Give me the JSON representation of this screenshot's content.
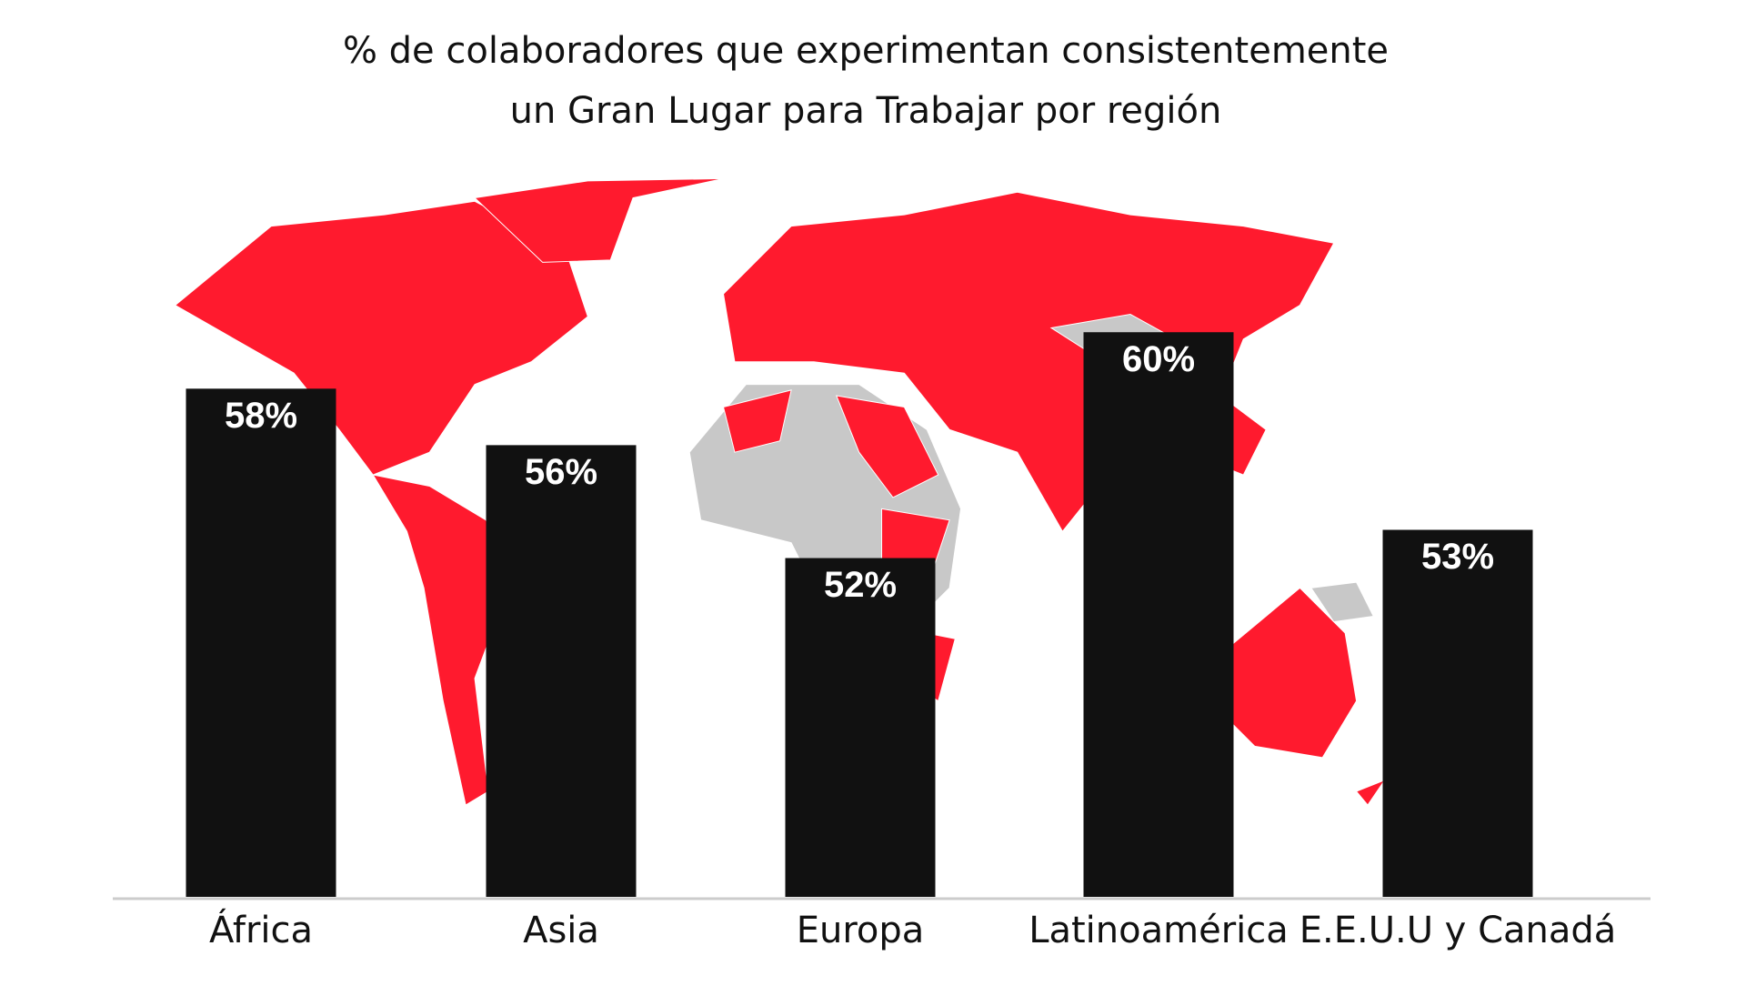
{
  "chart_data": {
    "type": "bar",
    "title": [
      "% de colaboradores que experimentan consistentemente",
      "un Gran Lugar para Trabajar por región"
    ],
    "categories": [
      "África",
      "Asia",
      "Europa",
      "Latinoamérica",
      "E.E.U.U y Canadá"
    ],
    "values": [
      58,
      56,
      52,
      60,
      53
    ],
    "value_labels": [
      "58%",
      "56%",
      "52%",
      "60%",
      "53%"
    ],
    "color": "#111111",
    "ylim": [
      40,
      66
    ]
  }
}
